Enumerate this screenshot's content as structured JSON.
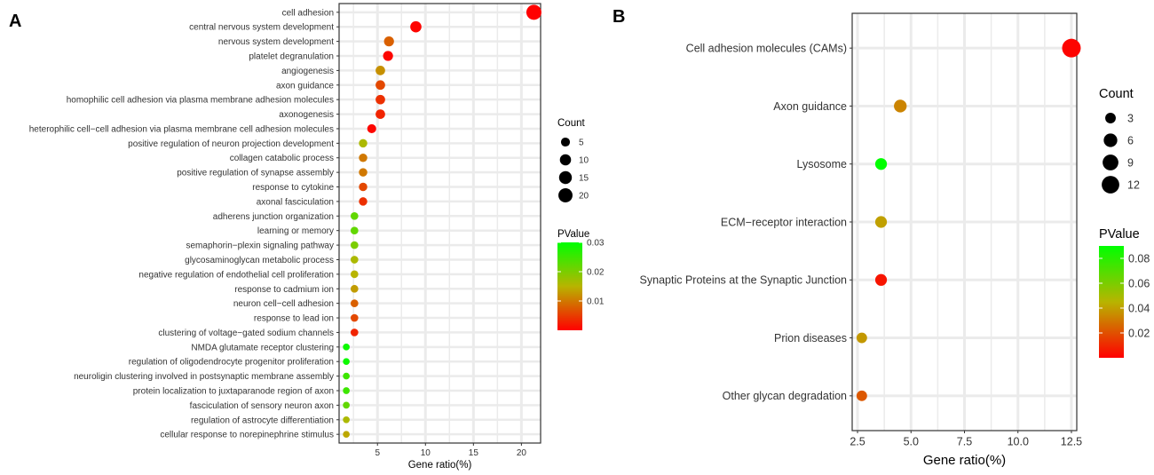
{
  "colors": {
    "low_p": "#ff0000",
    "mid_p": "#b8b400",
    "high_p": "#00ff00",
    "grid": "#ebebeb",
    "border": "#333333"
  },
  "chart_data": [
    {
      "panel": "A",
      "type": "scatter",
      "xlabel": "Gene ratio(%)",
      "xlim": [
        1,
        22
      ],
      "xticks": [
        5,
        10,
        15,
        20
      ],
      "categories": [
        "cell adhesion",
        "central nervous system development",
        "nervous system development",
        "platelet degranulation",
        "angiogenesis",
        "axon guidance",
        "homophilic cell adhesion via plasma membrane adhesion molecules",
        "axonogenesis",
        "heterophilic cell−cell adhesion via plasma membrane cell adhesion molecules",
        "positive regulation of neuron projection development",
        "collagen catabolic process",
        "positive regulation of synapse assembly",
        "response to cytokine",
        "axonal fasciculation",
        "adherens junction organization",
        "learning or memory",
        "semaphorin−plexin signaling pathway",
        "glycosaminoglycan metabolic process",
        "negative regulation of endothelial cell proliferation",
        "response to cadmium ion",
        "neuron cell−cell adhesion",
        "response to lead ion",
        "clustering of voltage−gated sodium channels",
        "NMDA glutamate receptor clustering",
        "regulation of oligodendrocyte progenitor proliferation",
        "neuroligin clustering involved in postsynaptic membrane assembly",
        "protein localization to juxtaparanode region of axon",
        "fasciculation of sensory neuron axon",
        "regulation of astrocyte differentiation",
        "cellular response to norepinephrine stimulus"
      ],
      "gene_ratio": [
        21.3,
        9.0,
        6.2,
        6.1,
        5.3,
        5.3,
        5.3,
        5.3,
        4.4,
        3.5,
        3.5,
        3.5,
        3.5,
        3.5,
        2.6,
        2.6,
        2.6,
        2.6,
        2.6,
        2.6,
        2.6,
        2.6,
        2.6,
        1.75,
        1.75,
        1.75,
        1.75,
        1.75,
        1.75,
        1.75
      ],
      "count": [
        24,
        10,
        7,
        7,
        6,
        6,
        6,
        6,
        5,
        4,
        4,
        4,
        4,
        4,
        3,
        3,
        3,
        3,
        3,
        3,
        3,
        3,
        3,
        2,
        2,
        2,
        2,
        2,
        2,
        2
      ],
      "pvalue": [
        0.0001,
        0.0003,
        0.008,
        0.0005,
        0.012,
        0.006,
        0.004,
        0.003,
        0.0005,
        0.016,
        0.01,
        0.01,
        0.006,
        0.004,
        0.022,
        0.022,
        0.02,
        0.016,
        0.015,
        0.013,
        0.008,
        0.006,
        0.003,
        0.029,
        0.029,
        0.025,
        0.025,
        0.022,
        0.016,
        0.014
      ],
      "size_legend": {
        "title": "Count",
        "values": [
          5,
          10,
          15,
          20
        ],
        "labels": [
          "5",
          "10",
          "15",
          "20"
        ]
      },
      "color_legend": {
        "title": "PValue",
        "ticks": [
          0.01,
          0.02,
          0.03
        ],
        "labels": [
          "0.01",
          "0.02",
          "0.03"
        ],
        "range": [
          0,
          0.03
        ]
      }
    },
    {
      "panel": "B",
      "type": "scatter",
      "xlabel": "Gene ratio(%)",
      "xlim": [
        2.25,
        12.75
      ],
      "xticks": [
        2.5,
        5.0,
        7.5,
        10.0,
        12.5
      ],
      "xtick_labels": [
        "2.5",
        "5.0",
        "7.5",
        "10.0",
        "12.5"
      ],
      "categories": [
        "Cell adhesion molecules (CAMs)",
        "Axon guidance",
        "Lysosome",
        "ECM−receptor interaction",
        "Synaptic Proteins at the Synaptic Junction",
        "Prion diseases",
        "Other glycan degradation"
      ],
      "gene_ratio": [
        12.5,
        4.5,
        3.6,
        3.6,
        3.6,
        2.7,
        2.7
      ],
      "count": [
        14,
        5,
        4,
        4,
        4,
        3,
        3
      ],
      "pvalue": [
        0.001,
        0.033,
        0.09,
        0.04,
        0.005,
        0.038,
        0.022
      ],
      "size_legend": {
        "title": "Count",
        "values": [
          3,
          6,
          9,
          12
        ],
        "labels": [
          "3",
          "6",
          "9",
          "12"
        ]
      },
      "color_legend": {
        "title": "PValue",
        "ticks": [
          0.02,
          0.04,
          0.06,
          0.08
        ],
        "labels": [
          "0.02",
          "0.04",
          "0.06",
          "0.08"
        ],
        "range": [
          0,
          0.09
        ]
      }
    }
  ]
}
